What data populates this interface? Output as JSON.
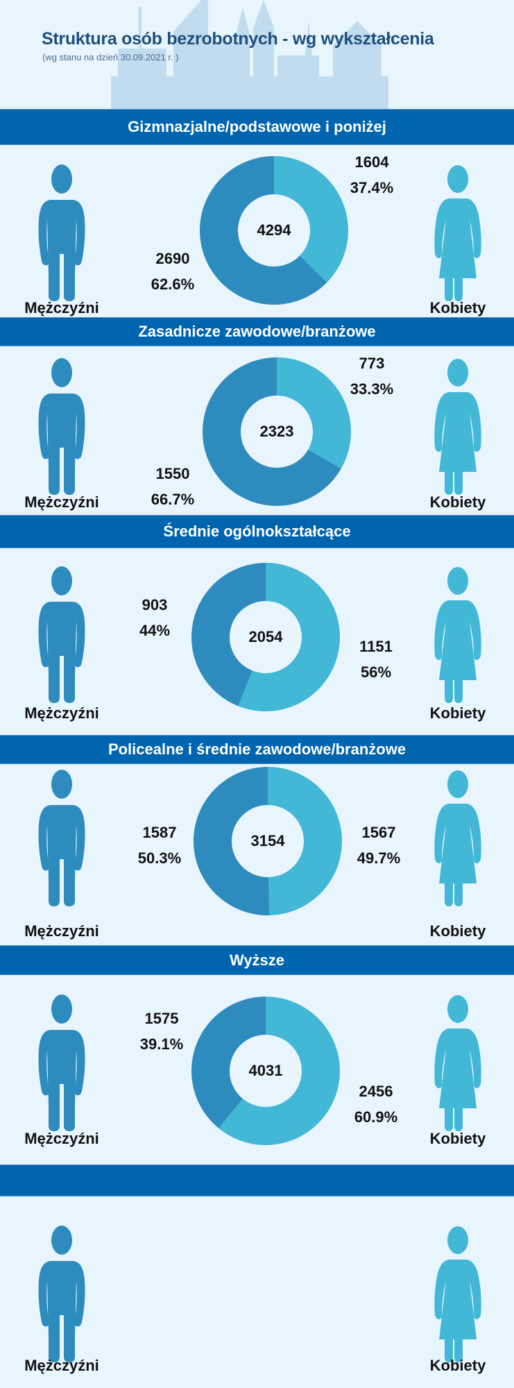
{
  "header": {
    "title": "Struktura osób bezrobotnych - wg wykształcenia",
    "subtitle": "(wg stanu na dzień 30.09.2021 r. )"
  },
  "colors": {
    "band": "#0064AF",
    "male": "#2E8BBD",
    "female": "#42B7D6",
    "background": "#E8F5FD"
  },
  "labels": {
    "male": "Mężczyźni",
    "female": "Kobiety"
  },
  "sections": [
    {
      "title": "Gizmnazjalne/podstawowe i poniżej",
      "total": "4294",
      "male": {
        "count": "2690",
        "pct": "62.6%",
        "value": 2690
      },
      "female": {
        "count": "1604",
        "pct": "37.4%",
        "value": 1604
      }
    },
    {
      "title": "Zasadnicze zawodowe/branżowe",
      "total": "2323",
      "male": {
        "count": "1550",
        "pct": "66.7%",
        "value": 1550
      },
      "female": {
        "count": "773",
        "pct": "33.3%",
        "value": 773
      }
    },
    {
      "title": "Średnie ogólnokształcące",
      "total": "2054",
      "male": {
        "count": "903",
        "pct": "44%",
        "value": 903
      },
      "female": {
        "count": "1151",
        "pct": "56%",
        "value": 1151
      }
    },
    {
      "title": "Policealne i średnie zawodowe/branżowe",
      "total": "3154",
      "male": {
        "count": "1587",
        "pct": "50.3%",
        "value": 1587
      },
      "female": {
        "count": "1567",
        "pct": "49.7%",
        "value": 1567
      }
    },
    {
      "title": "Wyższe",
      "total": "4031",
      "male": {
        "count": "1575",
        "pct": "39.1%",
        "value": 1575
      },
      "female": {
        "count": "2456",
        "pct": "60.9%",
        "value": 2456
      }
    },
    {
      "title": ""
    }
  ]
}
